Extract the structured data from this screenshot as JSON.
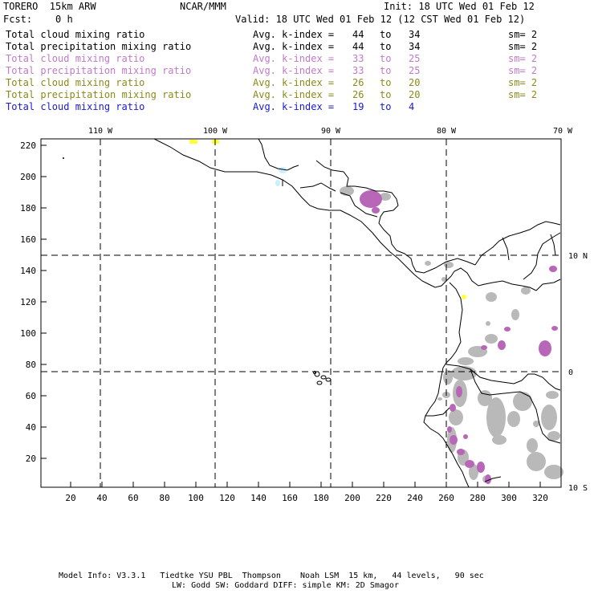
{
  "header": {
    "model": "TORERO  15km ARW",
    "org": "NCAR/MMM",
    "init": "Init: 18 UTC Wed 01 Feb 12",
    "fcst": "Fcst:    0 h",
    "valid": "Valid: 18 UTC Wed 01 Feb 12 (12 CST Wed 01 Feb 12)"
  },
  "legend": [
    {
      "field": "Total cloud mixing ratio",
      "label": "Avg. k-index =",
      "hi": "44",
      "to": "to",
      "lo": "34",
      "sm": "sm= 2",
      "color": "#000000"
    },
    {
      "field": "Total precipitation mixing ratio",
      "label": "Avg. k-index =",
      "hi": "44",
      "to": "to",
      "lo": "34",
      "sm": "sm= 2",
      "color": "#000000"
    },
    {
      "field": "Total cloud mixing ratio",
      "label": "Avg. k-index =",
      "hi": "33",
      "to": "to",
      "lo": "25",
      "sm": "sm= 2",
      "color": "#c07ac8"
    },
    {
      "field": "Total precipitation mixing ratio",
      "label": "Avg. k-index =",
      "hi": "33",
      "to": "to",
      "lo": "25",
      "sm": "sm= 2",
      "color": "#c07ac8"
    },
    {
      "field": "Total cloud mixing ratio",
      "label": "Avg. k-index =",
      "hi": "26",
      "to": "to",
      "lo": "20",
      "sm": "sm= 2",
      "color": "#8a8a1a"
    },
    {
      "field": "Total precipitation mixing ratio",
      "label": "Avg. k-index =",
      "hi": "26",
      "to": "to",
      "lo": "20",
      "sm": "sm= 2",
      "color": "#8a8a1a"
    },
    {
      "field": "Total cloud mixing ratio",
      "label": "Avg. k-index =",
      "hi": "19",
      "to": "to",
      "lo": "4",
      "sm": "",
      "color": "#1a1acc"
    }
  ],
  "map": {
    "lon_labels": [
      "110 W",
      "100 W",
      "90 W",
      "80 W",
      "70 W"
    ],
    "lat_labels": [
      "10 N",
      "0",
      "10 S"
    ],
    "y_ticks": [
      "220",
      "200",
      "180",
      "160",
      "140",
      "120",
      "100",
      "80",
      "60",
      "40",
      "20"
    ],
    "x_ticks": [
      "20",
      "40",
      "60",
      "80",
      "100",
      "120",
      "140",
      "160",
      "180",
      "200",
      "220",
      "240",
      "260",
      "280",
      "300",
      "320"
    ],
    "colors": {
      "precip": "#b9b9b9",
      "kindex_high": "#b866b8",
      "kindex_mid": "#ffff3c",
      "kindex_low": "#c8f0ff"
    }
  },
  "footer": {
    "line1": "Model Info: V3.3.1   Tiedtke YSU PBL  Thompson    Noah LSM  15 km,   44 levels,   90 sec",
    "line2": "LW: Godd SW: Goddard DIFF: simple KM: 2D Smagor"
  }
}
